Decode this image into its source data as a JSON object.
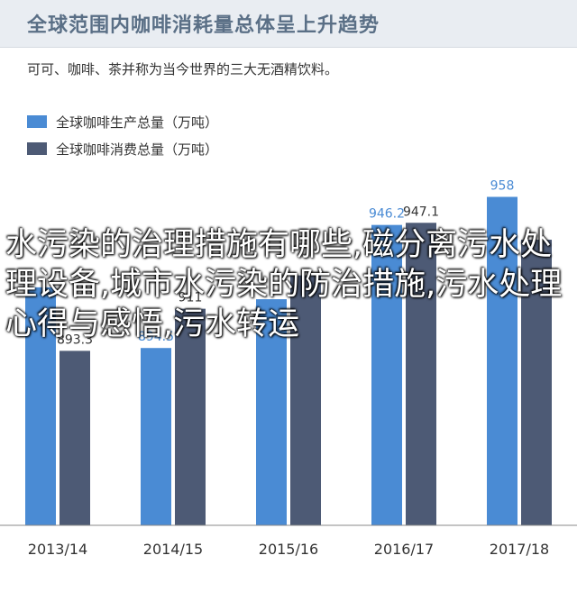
{
  "header": {
    "title": "全球范围内咖啡消耗量总体呈上升趋势",
    "subtitle": "可可、咖啡、茶并称为当今世界的三大无酒精饮料。"
  },
  "legend": [
    {
      "label": "全球咖啡生产总量（万吨）",
      "color": "#4a8bd4"
    },
    {
      "label": "全球咖啡消费总量（万吨）",
      "color": "#4d5a75"
    }
  ],
  "overlay_text": "水污染的治理措施有哪些,磁分离污水处理设备,城市水污染的防治措施,污水处理心得与感悟,污水转运",
  "chart_data": {
    "type": "bar",
    "categories": [
      "2013/14",
      "2014/15",
      "2015/16",
      "2016/17",
      "2017/18"
    ],
    "series": [
      {
        "name": "全球咖啡生产总量（万吨）",
        "color": "#4a8bd4",
        "values": [
          920,
          894.5,
          915,
          946.2,
          958
        ],
        "labels": [
          "",
          "894.5",
          "",
          "946.2",
          "958"
        ]
      },
      {
        "name": "全球咖啡消费总量（万吨）",
        "color": "#4d5a75",
        "values": [
          893.3,
          911,
          925,
          947.1,
          940
        ],
        "labels": [
          "893.3",
          "911",
          "",
          "947.1",
          ""
        ]
      }
    ],
    "ylim": [
      820,
      965
    ],
    "grid": false,
    "legend_position": "top-left"
  }
}
